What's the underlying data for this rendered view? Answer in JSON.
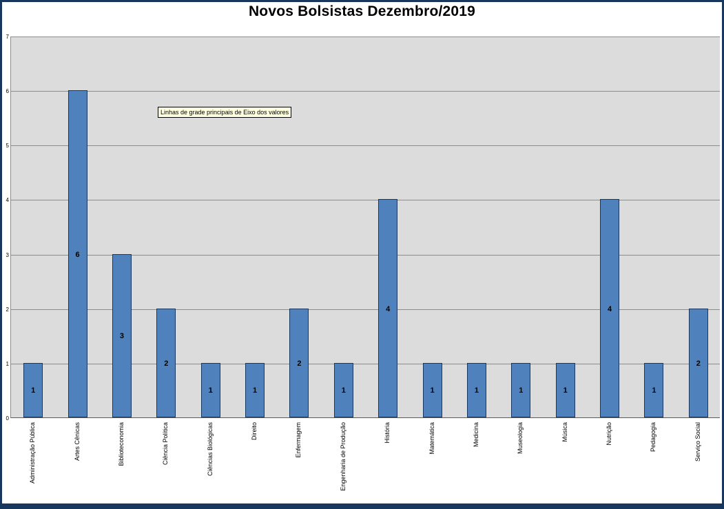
{
  "title": "Novos Bolsistas Dezembro/2019",
  "tooltip": {
    "text": "Linhas de grade principais de Eixo dos valores"
  },
  "colors": {
    "bar_fill": "#4F81BD",
    "bar_border": "#17375E",
    "plot_background": "#DCDCDC",
    "gridline": "#8C8C8C",
    "frame_border": "#17375E",
    "tooltip_background": "#FFFFE1"
  },
  "chart_data": {
    "type": "bar",
    "title": "Novos Bolsistas Dezembro/2019",
    "categories": [
      "Administração Pública",
      "Artes Cênicas",
      "Biblioteconomia",
      "Ciência Política",
      "Ciências Biológicas",
      "Direito",
      "Enfermagem",
      "Engenharia de Produção",
      "História",
      "Matemática",
      "Medicina",
      "Museologia",
      "Música",
      "Nutrição",
      "Pedagogia",
      "Serviço Social"
    ],
    "values": [
      1,
      6,
      3,
      2,
      1,
      1,
      2,
      1,
      4,
      1,
      1,
      1,
      1,
      4,
      1,
      2
    ],
    "xlabel": "",
    "ylabel": "",
    "ylim": [
      0,
      7
    ],
    "ytick_interval": 1,
    "yticks": [
      0,
      1,
      2,
      3,
      4,
      5,
      6,
      7
    ],
    "grid": true,
    "legend": "none",
    "data_labels": true,
    "data_label_position": "center"
  }
}
